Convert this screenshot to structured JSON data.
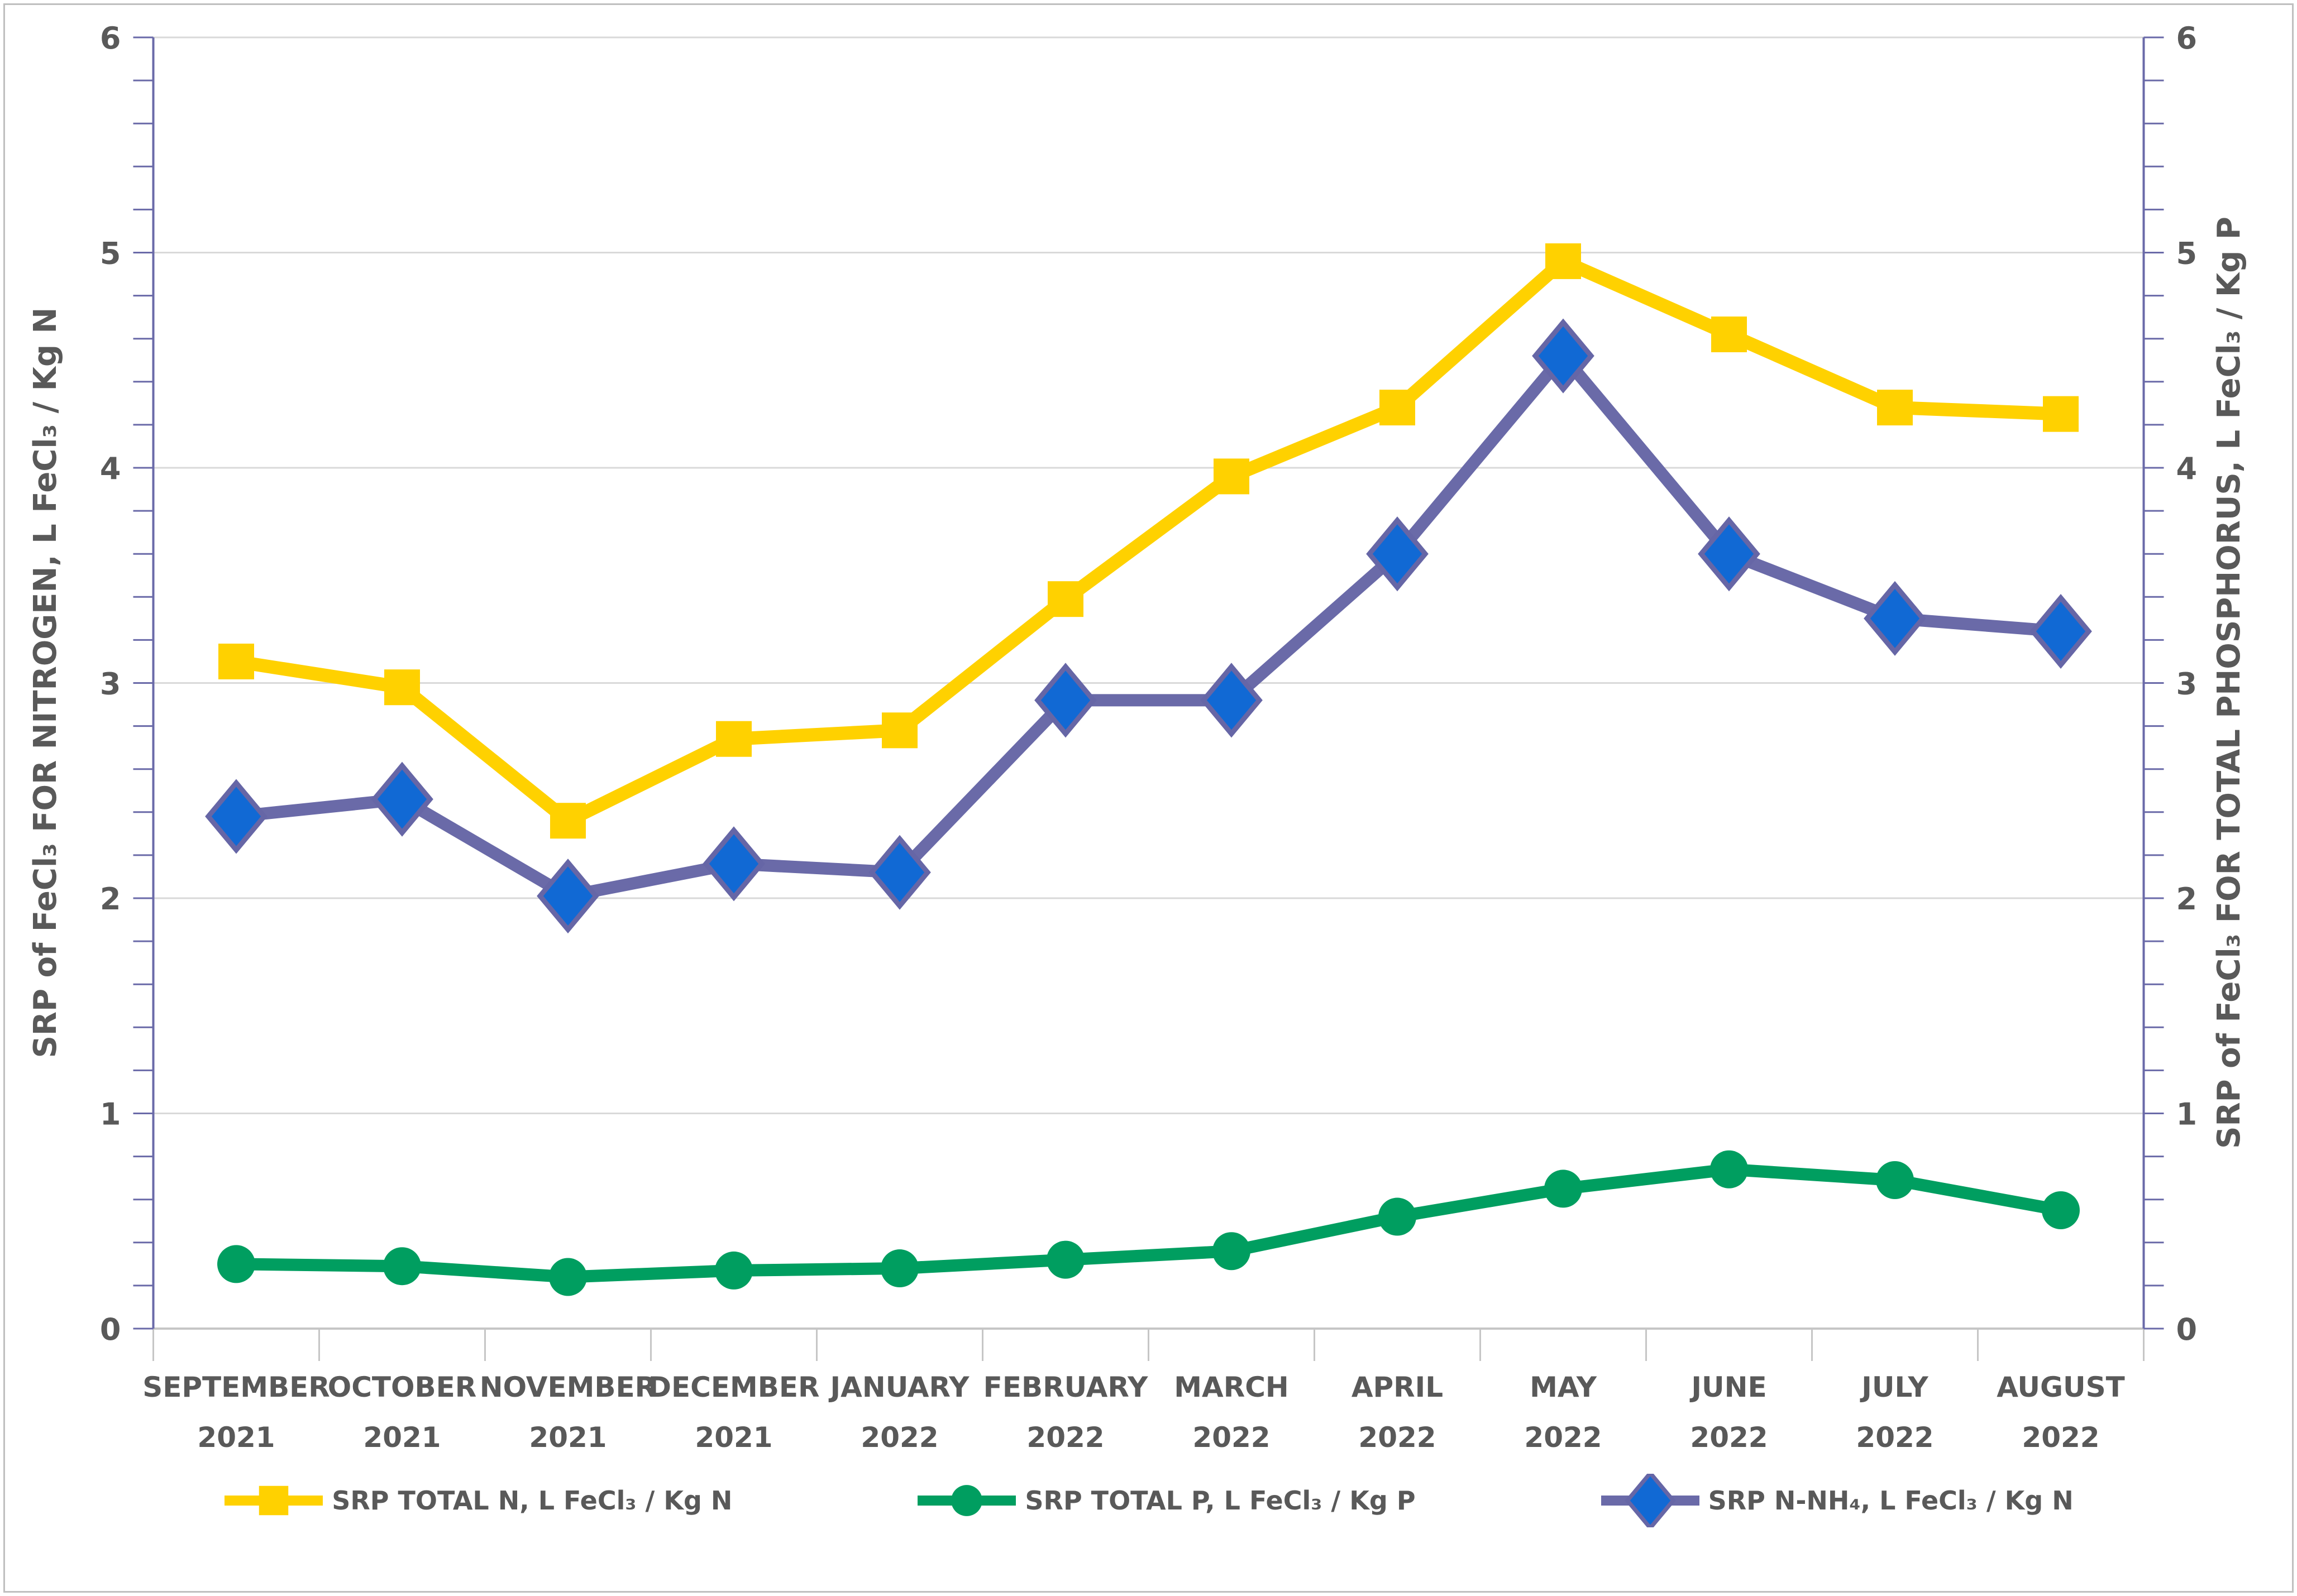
{
  "figure": {
    "background": "#FFFFFF",
    "border_color": "#BFBFBF"
  },
  "colors": {
    "vertical_axis": "#6A6AA8",
    "horizontal_axis": "#C6C6C6",
    "gridline": "#D9D9D9",
    "text": "#595959"
  },
  "chart_data": {
    "type": "line",
    "title": "",
    "categories": [
      {
        "month": "SEPTEMBER",
        "year": "2021"
      },
      {
        "month": "OCTOBER",
        "year": "2021"
      },
      {
        "month": "NOVEMBER",
        "year": "2021"
      },
      {
        "month": "DECEMBER",
        "year": "2021"
      },
      {
        "month": "JANUARY",
        "year": "2022"
      },
      {
        "month": "FEBRUARY",
        "year": "2022"
      },
      {
        "month": "MARCH",
        "year": "2022"
      },
      {
        "month": "APRIL",
        "year": "2022"
      },
      {
        "month": "MAY",
        "year": "2022"
      },
      {
        "month": "JUNE",
        "year": "2022"
      },
      {
        "month": "JULY",
        "year": "2022"
      },
      {
        "month": "AUGUST",
        "year": "2022"
      }
    ],
    "series": [
      {
        "name": "SRP TOTAL N, L FeCl₃ / Kg N",
        "marker": "square",
        "marker_color": "#FFD100",
        "line_color": "#FFD100",
        "values": [
          3.1,
          2.98,
          2.36,
          2.74,
          2.78,
          3.39,
          3.96,
          4.28,
          4.96,
          4.62,
          4.28,
          4.25
        ]
      },
      {
        "name": "SRP TOTAL P, L FeCl₃ / Kg P",
        "marker": "circle",
        "marker_color": "#009E60",
        "line_color": "#009E60",
        "values": [
          0.3,
          0.29,
          0.24,
          0.27,
          0.28,
          0.32,
          0.36,
          0.52,
          0.65,
          0.74,
          0.69,
          0.55
        ]
      },
      {
        "name": "SRP N-NH₄, L FeCl₃ / Kg N",
        "marker": "diamond",
        "marker_color": "#1169D4",
        "marker_border": "#6666A6",
        "line_color": "#6A6AA8",
        "values": [
          2.38,
          2.46,
          2.01,
          2.16,
          2.12,
          2.92,
          2.92,
          3.6,
          4.52,
          3.6,
          3.3,
          3.24
        ]
      }
    ],
    "y_left_label": "SRP of FeCl₃ FOR NITROGEN, L FeCl₃ / Kg N",
    "y_right_label": "SRP of FeCl₃ FOR TOTAL PHOSPHORUS, L FeCl₃ / Kg P",
    "ylim": [
      0,
      6
    ],
    "y_ticks": [
      0,
      1,
      2,
      3,
      4,
      5,
      6
    ],
    "minor_tick_step": 0.2,
    "grid": "horizontal",
    "legend_position": "bottom"
  }
}
